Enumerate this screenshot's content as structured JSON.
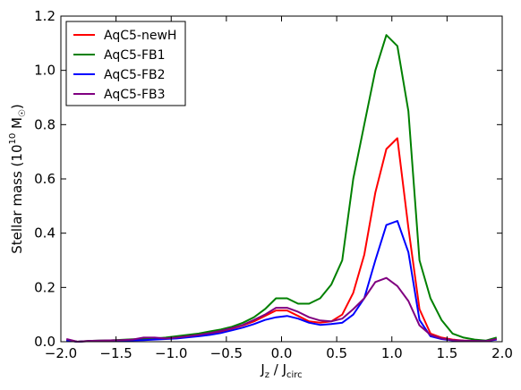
{
  "chart_data": {
    "type": "line",
    "xlabel": {
      "main": "J",
      "sub1": "z",
      "mid": " / J",
      "sub2": "circ"
    },
    "ylabel": {
      "main": "Stellar mass (10",
      "sup": "10",
      "mid": " M",
      "sub": "☉",
      "end": ")"
    },
    "xlim": [
      -2.0,
      2.0
    ],
    "ylim": [
      0.0,
      1.2
    ],
    "xticks": [
      "-2.0",
      "-1.5",
      "-1.0",
      "-0.5",
      "0.0",
      "0.5",
      "1.0",
      "1.5",
      "2.0"
    ],
    "yticks": [
      "0.0",
      "0.2",
      "0.4",
      "0.6",
      "0.8",
      "1.0",
      "1.2"
    ],
    "legend_position": "top-left",
    "x": [
      -1.95,
      -1.85,
      -1.75,
      -1.65,
      -1.55,
      -1.45,
      -1.35,
      -1.25,
      -1.15,
      -1.05,
      -0.95,
      -0.85,
      -0.75,
      -0.65,
      -0.55,
      -0.45,
      -0.35,
      -0.25,
      -0.15,
      -0.05,
      0.05,
      0.15,
      0.25,
      0.35,
      0.45,
      0.55,
      0.65,
      0.75,
      0.85,
      0.95,
      1.05,
      1.15,
      1.25,
      1.35,
      1.45,
      1.55,
      1.65,
      1.75,
      1.85,
      1.95
    ],
    "series": [
      {
        "name": "AqC5-newH",
        "color": "#ff0000",
        "values": [
          0.005,
          0.0,
          0.002,
          0.003,
          0.004,
          0.006,
          0.008,
          0.01,
          0.01,
          0.012,
          0.015,
          0.02,
          0.025,
          0.03,
          0.038,
          0.048,
          0.06,
          0.075,
          0.095,
          0.115,
          0.115,
          0.095,
          0.075,
          0.07,
          0.075,
          0.1,
          0.18,
          0.32,
          0.55,
          0.71,
          0.75,
          0.42,
          0.12,
          0.03,
          0.015,
          0.008,
          0.004,
          0.003,
          0.002,
          0.01
        ]
      },
      {
        "name": "AqC5-FB1",
        "color": "#008000",
        "values": [
          0.005,
          0.0,
          0.003,
          0.004,
          0.005,
          0.007,
          0.009,
          0.01,
          0.012,
          0.015,
          0.02,
          0.025,
          0.03,
          0.038,
          0.045,
          0.055,
          0.07,
          0.09,
          0.12,
          0.16,
          0.16,
          0.14,
          0.14,
          0.16,
          0.21,
          0.3,
          0.6,
          0.8,
          1.0,
          1.13,
          1.09,
          0.85,
          0.3,
          0.16,
          0.08,
          0.03,
          0.015,
          0.008,
          0.004,
          0.015
        ]
      },
      {
        "name": "AqC5-FB2",
        "color": "#0000ff",
        "values": [
          0.005,
          0.0,
          0.002,
          0.003,
          0.003,
          0.004,
          0.005,
          0.006,
          0.008,
          0.01,
          0.012,
          0.016,
          0.02,
          0.025,
          0.032,
          0.042,
          0.052,
          0.065,
          0.08,
          0.09,
          0.095,
          0.085,
          0.07,
          0.062,
          0.065,
          0.07,
          0.1,
          0.16,
          0.3,
          0.43,
          0.445,
          0.33,
          0.08,
          0.02,
          0.01,
          0.005,
          0.003,
          0.002,
          0.002,
          0.008
        ]
      },
      {
        "name": "AqC5-FB3",
        "color": "#800080",
        "values": [
          0.01,
          0.0,
          0.003,
          0.004,
          0.005,
          0.006,
          0.008,
          0.015,
          0.015,
          0.012,
          0.015,
          0.02,
          0.025,
          0.032,
          0.04,
          0.05,
          0.062,
          0.08,
          0.1,
          0.125,
          0.125,
          0.11,
          0.09,
          0.078,
          0.075,
          0.085,
          0.12,
          0.16,
          0.22,
          0.235,
          0.205,
          0.15,
          0.06,
          0.025,
          0.012,
          0.006,
          0.004,
          0.003,
          0.002,
          0.01
        ]
      }
    ]
  }
}
